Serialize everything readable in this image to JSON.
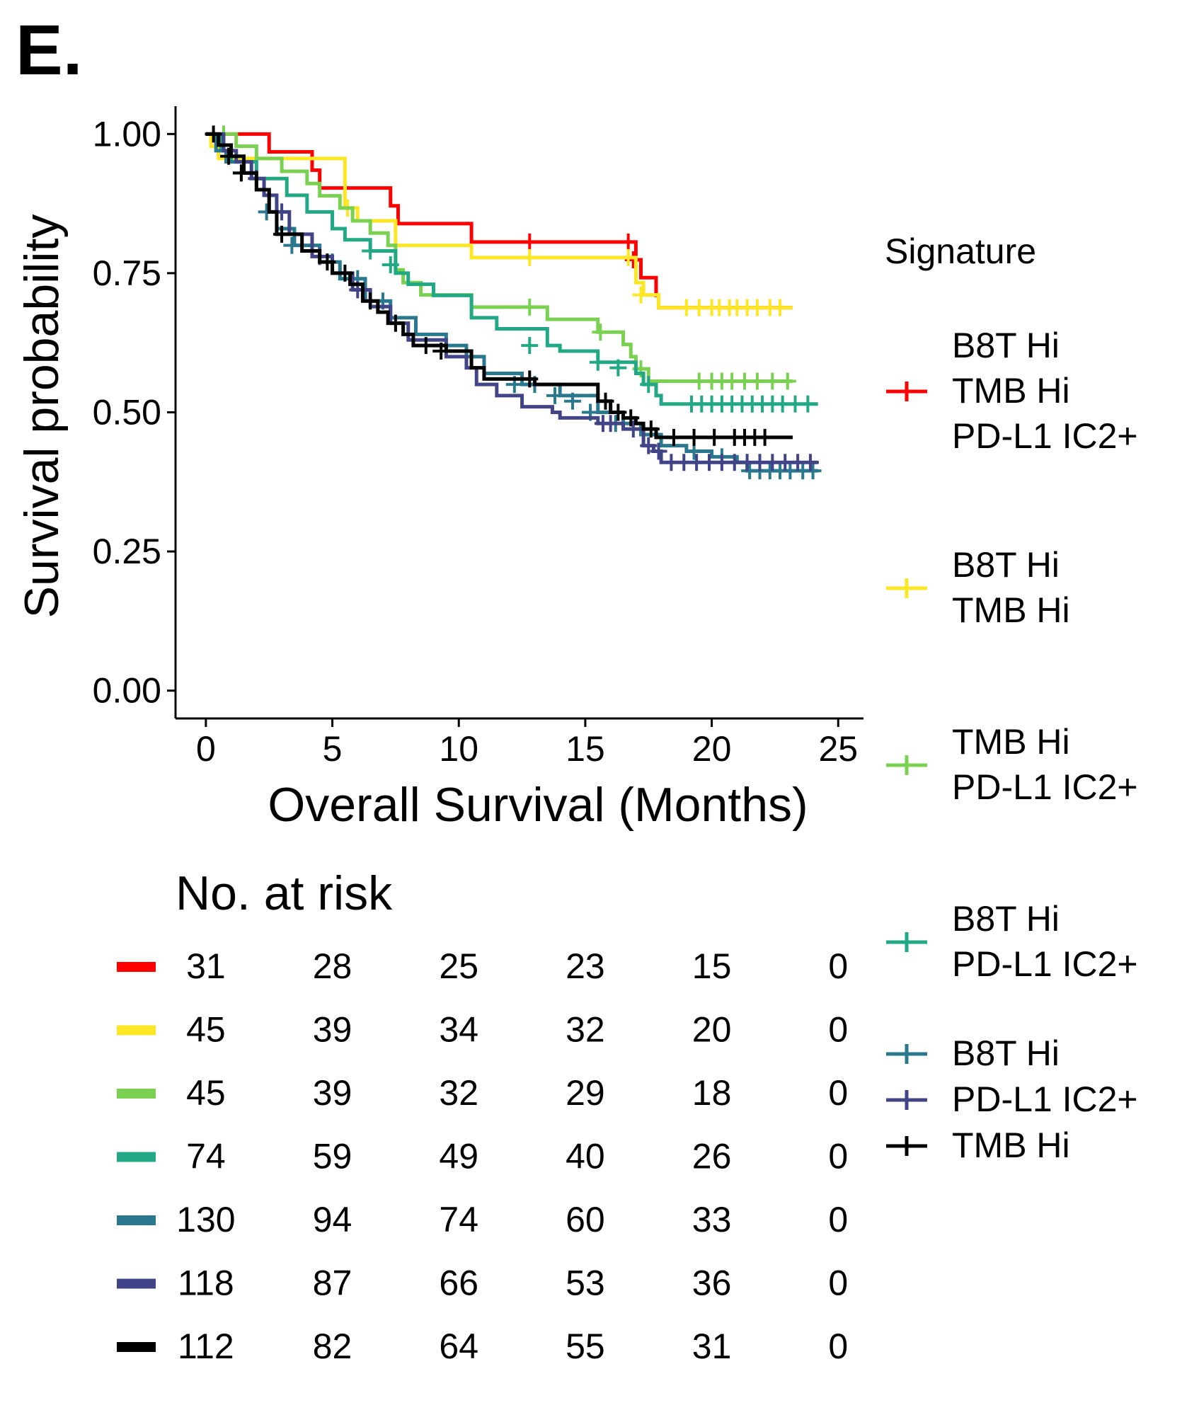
{
  "panel_label": "E.",
  "chart_data": {
    "type": "line",
    "subtype": "kaplan-meier",
    "xlabel": "Overall Survival (Months)",
    "ylabel": "Survival probability",
    "xlim": [
      -1.2,
      26
    ],
    "ylim": [
      -0.05,
      1.05
    ],
    "xticks": [
      "0",
      "5",
      "10",
      "15",
      "20",
      "25"
    ],
    "yticks": [
      "0.00",
      "0.25",
      "0.50",
      "0.75",
      "1.00"
    ],
    "legend": {
      "title": "Signature",
      "placement": "right",
      "entries": [
        {
          "lines": [
            "B8T Hi",
            "TMB Hi",
            "PD-L1 IC2+"
          ],
          "color": "#FF0000"
        },
        {
          "lines": [
            "B8T Hi",
            "TMB Hi"
          ],
          "color": "#FDE725"
        },
        {
          "lines": [
            "TMB Hi",
            "PD-L1 IC2+"
          ],
          "color": "#7AD151"
        },
        {
          "lines": [
            "B8T Hi",
            "PD-L1 IC2+"
          ],
          "color": "#22A884"
        },
        {
          "lines": [
            "B8T Hi"
          ],
          "color": "#2A788E"
        },
        {
          "lines": [
            "PD-L1 IC2+"
          ],
          "color": "#414487"
        },
        {
          "lines": [
            "TMB Hi"
          ],
          "color": "#000000"
        }
      ]
    },
    "series": [
      {
        "color": "#FF0000",
        "steps": [
          [
            0,
            1
          ],
          [
            2.5,
            0.968
          ],
          [
            4.2,
            0.935
          ],
          [
            4.5,
            0.903
          ],
          [
            7.3,
            0.871
          ],
          [
            7.6,
            0.839
          ],
          [
            10.5,
            0.806
          ],
          [
            17,
            0.774
          ],
          [
            17.2,
            0.742
          ],
          [
            17.8,
            0.71
          ],
          [
            17.9,
            0.688
          ],
          [
            23.2,
            0.688
          ]
        ],
        "censor": [
          [
            5.5,
            0.903
          ],
          [
            12.8,
            0.806
          ],
          [
            16.7,
            0.806
          ],
          [
            16.9,
            0.774
          ]
        ]
      },
      {
        "color": "#FDE725",
        "steps": [
          [
            0,
            1
          ],
          [
            0.2,
            0.978
          ],
          [
            0.5,
            0.956
          ],
          [
            1,
            0.956
          ],
          [
            5.5,
            0.867
          ],
          [
            6,
            0.844
          ],
          [
            7.5,
            0.8
          ],
          [
            10.5,
            0.778
          ],
          [
            17,
            0.733
          ],
          [
            17.3,
            0.711
          ],
          [
            17.9,
            0.688
          ],
          [
            23.2,
            0.688
          ]
        ],
        "censor": [
          [
            5.6,
            0.867
          ],
          [
            12.8,
            0.778
          ],
          [
            16.7,
            0.778
          ],
          [
            17.2,
            0.711
          ],
          [
            19,
            0.688
          ],
          [
            19.5,
            0.688
          ],
          [
            20,
            0.688
          ],
          [
            20.3,
            0.688
          ],
          [
            20.7,
            0.688
          ],
          [
            21,
            0.688
          ],
          [
            21.4,
            0.688
          ],
          [
            21.8,
            0.688
          ],
          [
            22.3,
            0.688
          ],
          [
            22.7,
            0.688
          ]
        ]
      },
      {
        "color": "#7AD151",
        "steps": [
          [
            0,
            1
          ],
          [
            1.2,
            0.978
          ],
          [
            2,
            0.956
          ],
          [
            3,
            0.933
          ],
          [
            4,
            0.911
          ],
          [
            4.5,
            0.889
          ],
          [
            5.3,
            0.867
          ],
          [
            5.8,
            0.844
          ],
          [
            6.5,
            0.822
          ],
          [
            7.2,
            0.8
          ],
          [
            7.5,
            0.756
          ],
          [
            7.8,
            0.733
          ],
          [
            8.5,
            0.711
          ],
          [
            10.5,
            0.689
          ],
          [
            13.5,
            0.667
          ],
          [
            15.5,
            0.644
          ],
          [
            16.5,
            0.622
          ],
          [
            16.8,
            0.6
          ],
          [
            17,
            0.578
          ],
          [
            17.5,
            0.556
          ],
          [
            23.2,
            0.556
          ]
        ],
        "censor": [
          [
            0.7,
            1
          ],
          [
            12.8,
            0.689
          ],
          [
            15.6,
            0.644
          ],
          [
            17.2,
            0.578
          ],
          [
            19.5,
            0.556
          ],
          [
            20,
            0.556
          ],
          [
            20.4,
            0.556
          ],
          [
            20.8,
            0.556
          ],
          [
            21.3,
            0.556
          ],
          [
            21.8,
            0.556
          ],
          [
            22.4,
            0.556
          ],
          [
            23,
            0.556
          ]
        ]
      },
      {
        "color": "#22A884",
        "steps": [
          [
            0,
            1
          ],
          [
            0.6,
            0.97
          ],
          [
            1,
            0.95
          ],
          [
            2,
            0.92
          ],
          [
            3.2,
            0.89
          ],
          [
            4,
            0.86
          ],
          [
            5,
            0.83
          ],
          [
            5.5,
            0.81
          ],
          [
            6.5,
            0.79
          ],
          [
            7.5,
            0.75
          ],
          [
            8,
            0.73
          ],
          [
            9,
            0.71
          ],
          [
            10.5,
            0.67
          ],
          [
            11.5,
            0.65
          ],
          [
            13.5,
            0.62
          ],
          [
            14,
            0.61
          ],
          [
            15.5,
            0.59
          ],
          [
            17,
            0.57
          ],
          [
            17.3,
            0.55
          ],
          [
            17.8,
            0.53
          ],
          [
            18,
            0.515
          ],
          [
            24.2,
            0.515
          ]
        ],
        "censor": [
          [
            6.5,
            0.79
          ],
          [
            7.3,
            0.765
          ],
          [
            12.8,
            0.62
          ],
          [
            15.5,
            0.59
          ],
          [
            16.3,
            0.58
          ],
          [
            17.5,
            0.55
          ],
          [
            19.2,
            0.515
          ],
          [
            19.6,
            0.515
          ],
          [
            20,
            0.515
          ],
          [
            20.4,
            0.515
          ],
          [
            20.8,
            0.515
          ],
          [
            21.2,
            0.515
          ],
          [
            21.6,
            0.515
          ],
          [
            22,
            0.515
          ],
          [
            22.4,
            0.515
          ],
          [
            22.8,
            0.515
          ],
          [
            23.3,
            0.515
          ],
          [
            23.8,
            0.515
          ]
        ]
      },
      {
        "color": "#2A788E",
        "steps": [
          [
            0,
            1
          ],
          [
            0.4,
            0.97
          ],
          [
            0.8,
            0.95
          ],
          [
            1.5,
            0.93
          ],
          [
            2,
            0.9
          ],
          [
            2.5,
            0.86
          ],
          [
            2.8,
            0.83
          ],
          [
            3.5,
            0.8
          ],
          [
            4.5,
            0.77
          ],
          [
            5.3,
            0.74
          ],
          [
            6.3,
            0.7
          ],
          [
            7.3,
            0.67
          ],
          [
            8.3,
            0.64
          ],
          [
            9.5,
            0.62
          ],
          [
            10.3,
            0.6
          ],
          [
            11,
            0.57
          ],
          [
            12.5,
            0.55
          ],
          [
            14,
            0.53
          ],
          [
            15.5,
            0.5
          ],
          [
            16.5,
            0.48
          ],
          [
            17.2,
            0.46
          ],
          [
            18,
            0.44
          ],
          [
            19,
            0.43
          ],
          [
            20,
            0.42
          ],
          [
            21,
            0.41
          ],
          [
            21.4,
            0.395
          ],
          [
            24.2,
            0.395
          ]
        ],
        "censor": [
          [
            1.4,
            0.93
          ],
          [
            2.4,
            0.86
          ],
          [
            3.4,
            0.8
          ],
          [
            5,
            0.77
          ],
          [
            6,
            0.74
          ],
          [
            7,
            0.7
          ],
          [
            12.2,
            0.55
          ],
          [
            13,
            0.55
          ],
          [
            13.8,
            0.53
          ],
          [
            14.5,
            0.52
          ],
          [
            15.2,
            0.5
          ],
          [
            16.2,
            0.48
          ],
          [
            19.3,
            0.43
          ],
          [
            20.4,
            0.42
          ],
          [
            21.5,
            0.395
          ],
          [
            21.9,
            0.395
          ],
          [
            22.3,
            0.395
          ],
          [
            22.7,
            0.395
          ],
          [
            23.1,
            0.395
          ],
          [
            23.6,
            0.395
          ],
          [
            24,
            0.395
          ]
        ]
      },
      {
        "color": "#414487",
        "steps": [
          [
            0,
            1
          ],
          [
            0.7,
            0.97
          ],
          [
            1.2,
            0.95
          ],
          [
            1.8,
            0.92
          ],
          [
            2.3,
            0.89
          ],
          [
            2.8,
            0.86
          ],
          [
            3.3,
            0.82
          ],
          [
            4.2,
            0.78
          ],
          [
            5,
            0.75
          ],
          [
            5.8,
            0.72
          ],
          [
            6.5,
            0.69
          ],
          [
            7.3,
            0.66
          ],
          [
            8,
            0.63
          ],
          [
            9.5,
            0.6
          ],
          [
            10.3,
            0.58
          ],
          [
            10.7,
            0.55
          ],
          [
            11.5,
            0.53
          ],
          [
            12.5,
            0.51
          ],
          [
            13.7,
            0.5
          ],
          [
            14,
            0.49
          ],
          [
            15.5,
            0.48
          ],
          [
            16.5,
            0.47
          ],
          [
            17.3,
            0.44
          ],
          [
            17.7,
            0.43
          ],
          [
            18,
            0.41
          ],
          [
            24.2,
            0.41
          ]
        ],
        "censor": [
          [
            2,
            0.92
          ],
          [
            3,
            0.86
          ],
          [
            4.5,
            0.78
          ],
          [
            6,
            0.72
          ],
          [
            7.5,
            0.66
          ],
          [
            15.7,
            0.48
          ],
          [
            16,
            0.48
          ],
          [
            16.9,
            0.47
          ],
          [
            17.5,
            0.44
          ],
          [
            17.9,
            0.43
          ],
          [
            18.4,
            0.41
          ],
          [
            18.9,
            0.41
          ],
          [
            19.4,
            0.41
          ],
          [
            19.9,
            0.41
          ],
          [
            20.4,
            0.41
          ],
          [
            20.9,
            0.41
          ],
          [
            21.4,
            0.41
          ],
          [
            21.9,
            0.41
          ],
          [
            22.4,
            0.41
          ],
          [
            22.9,
            0.41
          ],
          [
            23.4,
            0.41
          ],
          [
            23.9,
            0.41
          ]
        ]
      },
      {
        "color": "#000000",
        "steps": [
          [
            0,
            1
          ],
          [
            0.5,
            0.98
          ],
          [
            1,
            0.96
          ],
          [
            1.5,
            0.93
          ],
          [
            2,
            0.9
          ],
          [
            2.5,
            0.86
          ],
          [
            2.8,
            0.82
          ],
          [
            3.8,
            0.79
          ],
          [
            4.5,
            0.77
          ],
          [
            5,
            0.75
          ],
          [
            5.7,
            0.73
          ],
          [
            6.2,
            0.7
          ],
          [
            6.8,
            0.68
          ],
          [
            7.2,
            0.66
          ],
          [
            7.8,
            0.64
          ],
          [
            8.2,
            0.62
          ],
          [
            9.5,
            0.61
          ],
          [
            10.5,
            0.58
          ],
          [
            11,
            0.56
          ],
          [
            12.5,
            0.56
          ],
          [
            13,
            0.55
          ],
          [
            15.5,
            0.52
          ],
          [
            16,
            0.5
          ],
          [
            16.5,
            0.49
          ],
          [
            17,
            0.48
          ],
          [
            17.3,
            0.47
          ],
          [
            17.8,
            0.455
          ],
          [
            23.2,
            0.455
          ]
        ],
        "censor": [
          [
            0.3,
            1
          ],
          [
            0.9,
            0.96
          ],
          [
            1.4,
            0.93
          ],
          [
            3,
            0.82
          ],
          [
            4.8,
            0.77
          ],
          [
            5.5,
            0.75
          ],
          [
            6.5,
            0.7
          ],
          [
            7.5,
            0.66
          ],
          [
            8.7,
            0.62
          ],
          [
            9.3,
            0.61
          ],
          [
            12.8,
            0.56
          ],
          [
            15.8,
            0.52
          ],
          [
            16.3,
            0.5
          ],
          [
            16.8,
            0.49
          ],
          [
            17.6,
            0.47
          ],
          [
            18.5,
            0.455
          ],
          [
            19.3,
            0.455
          ],
          [
            20.1,
            0.455
          ],
          [
            20.9,
            0.455
          ],
          [
            21.3,
            0.455
          ],
          [
            21.7,
            0.455
          ],
          [
            22.1,
            0.455
          ]
        ]
      }
    ],
    "risk_table": {
      "title": "No. at risk",
      "timepoints": [
        0,
        5,
        10,
        15,
        20,
        25
      ],
      "rows": [
        {
          "color": "#FF0000",
          "values": [
            "31",
            "28",
            "25",
            "23",
            "15",
            "0"
          ]
        },
        {
          "color": "#FDE725",
          "values": [
            "45",
            "39",
            "34",
            "32",
            "20",
            "0"
          ]
        },
        {
          "color": "#7AD151",
          "values": [
            "45",
            "39",
            "32",
            "29",
            "18",
            "0"
          ]
        },
        {
          "color": "#22A884",
          "values": [
            "74",
            "59",
            "49",
            "40",
            "26",
            "0"
          ]
        },
        {
          "color": "#2A788E",
          "values": [
            "130",
            "94",
            "74",
            "60",
            "33",
            "0"
          ]
        },
        {
          "color": "#414487",
          "values": [
            "118",
            "87",
            "66",
            "53",
            "36",
            "0"
          ]
        },
        {
          "color": "#000000",
          "values": [
            "112",
            "82",
            "64",
            "55",
            "31",
            "0"
          ]
        }
      ]
    }
  }
}
